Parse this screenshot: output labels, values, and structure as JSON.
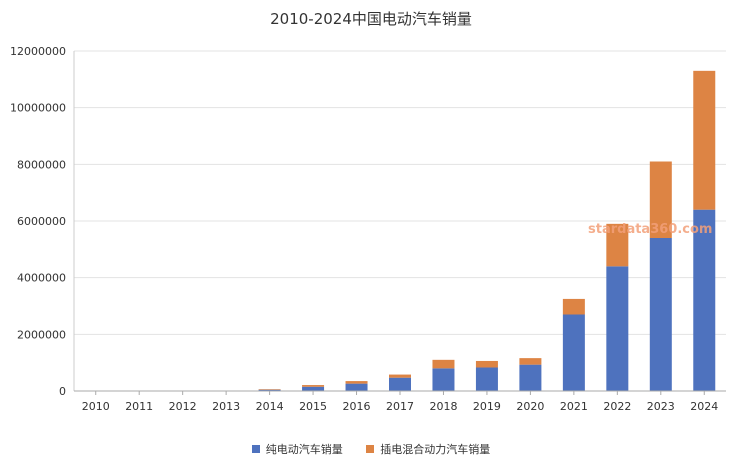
{
  "chart_data": {
    "type": "bar",
    "stacked": true,
    "title": "2010-2024中国电动汽车销量",
    "xlabel": "",
    "ylabel": "",
    "categories": [
      "2010",
      "2011",
      "2012",
      "2013",
      "2014",
      "2015",
      "2016",
      "2017",
      "2018",
      "2019",
      "2020",
      "2021",
      "2022",
      "2023",
      "2024"
    ],
    "ylim": [
      0,
      12000000
    ],
    "yticks": [
      0,
      2000000,
      4000000,
      6000000,
      8000000,
      10000000,
      12000000
    ],
    "ytick_labels": [
      "0",
      "2000000",
      "4000000",
      "6000000",
      "8000000",
      "10000000",
      "12000000"
    ],
    "grid": true,
    "legend_position": "bottom",
    "series": [
      {
        "name": "纯电动汽车销量",
        "color": "#4e72be",
        "values": [
          0,
          0,
          10000,
          15000,
          45000,
          150000,
          260000,
          470000,
          800000,
          830000,
          930000,
          2700000,
          4400000,
          5400000,
          6400000
        ]
      },
      {
        "name": "插电混合动力汽车销量",
        "color": "#dd8444",
        "values": [
          0,
          0,
          0,
          0,
          20000,
          60000,
          90000,
          110000,
          300000,
          230000,
          230000,
          550000,
          1500000,
          2700000,
          4900000
        ]
      }
    ],
    "watermark": "stardata360.com"
  }
}
